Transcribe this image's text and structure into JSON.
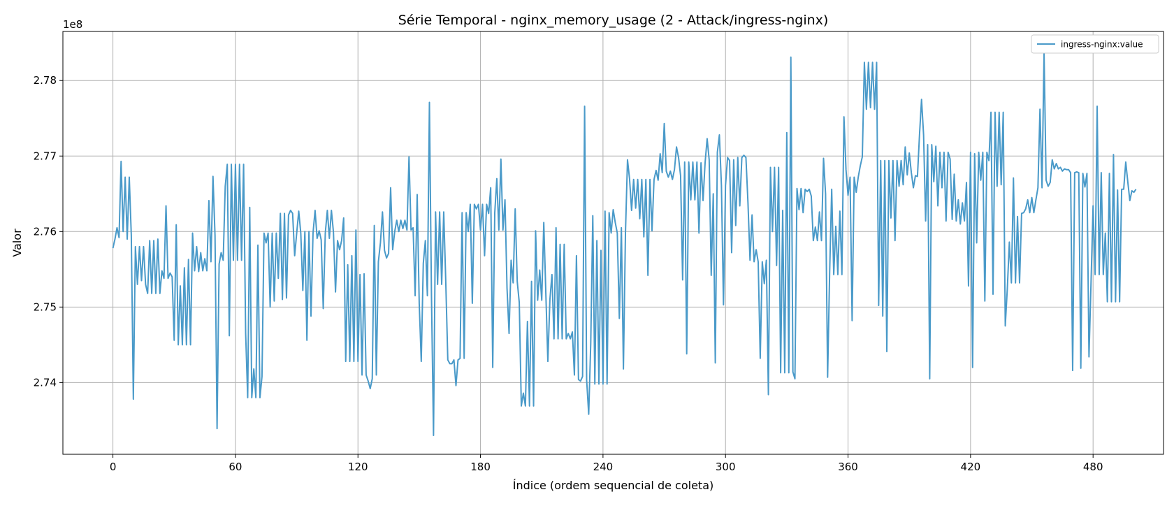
{
  "chart_data": {
    "type": "line",
    "title": "Série Temporal - nginx_memory_usage (2 - Attack/ingress-nginx)",
    "xlabel": "Índice (ordem sequencial de coleta)",
    "ylabel": "Valor",
    "y_offset_text": "1e8",
    "y_multiplier": 100000000,
    "xlim": [
      -24.5,
      514.5
    ],
    "ylim": [
      2.7305,
      2.7865
    ],
    "x_ticks": [
      0,
      60,
      120,
      180,
      240,
      300,
      360,
      420,
      480
    ],
    "x_tick_labels": [
      "0",
      "60",
      "120",
      "180",
      "240",
      "300",
      "360",
      "420",
      "480"
    ],
    "y_ticks": [
      2.74,
      2.75,
      2.76,
      2.77,
      2.78
    ],
    "y_tick_labels": [
      "2.74",
      "2.75",
      "2.76",
      "2.77",
      "2.78"
    ],
    "grid": true,
    "legend_position": "top-right",
    "series": [
      {
        "name": "ingress-nginx:value",
        "color": "#4a9ac9",
        "y": [
          2.7578,
          2.759,
          2.7605,
          2.7592,
          2.7693,
          2.76,
          2.7672,
          2.759,
          2.7672,
          2.7595,
          2.7378,
          2.758,
          2.753,
          2.758,
          2.7535,
          2.758,
          2.753,
          2.7518,
          2.7588,
          2.7518,
          2.7588,
          2.7518,
          2.759,
          2.7518,
          2.7548,
          2.7538,
          2.7634,
          2.7538,
          2.7545,
          2.754,
          2.7456,
          2.7609,
          2.745,
          2.7528,
          2.745,
          2.7552,
          2.745,
          2.7563,
          2.745,
          2.7598,
          2.7548,
          2.758,
          2.7547,
          2.7572,
          2.7548,
          2.7564,
          2.7548,
          2.7641,
          2.756,
          2.7673,
          2.7595,
          2.7339,
          2.7557,
          2.7572,
          2.7562,
          2.766,
          2.7689,
          2.7462,
          2.7689,
          2.7562,
          2.7689,
          2.7562,
          2.7689,
          2.7562,
          2.7689,
          2.7465,
          2.738,
          2.7632,
          2.738,
          2.7418,
          2.738,
          2.7582,
          2.738,
          2.7408,
          2.7598,
          2.7585,
          2.7598,
          2.75,
          2.7598,
          2.7508,
          2.7598,
          2.7538,
          2.7624,
          2.751,
          2.7624,
          2.7512,
          2.7622,
          2.7628,
          2.7624,
          2.7568,
          2.7598,
          2.7627,
          2.7598,
          2.7522,
          2.76,
          2.7456,
          2.76,
          2.7488,
          2.7598,
          2.7628,
          2.7591,
          2.7601,
          2.7589,
          2.7498,
          2.7598,
          2.7628,
          2.7591,
          2.7628,
          2.7599,
          2.752,
          2.7588,
          2.7576,
          2.7588,
          2.7618,
          2.7428,
          2.7556,
          2.7428,
          2.7568,
          2.7428,
          2.7602,
          2.7428,
          2.7543,
          2.741,
          2.7544,
          2.741,
          2.7402,
          2.7392,
          2.7405,
          2.7608,
          2.741,
          2.756,
          2.7585,
          2.7626,
          2.7575,
          2.7565,
          2.7571,
          2.7658,
          2.7576,
          2.76,
          2.7615,
          2.76,
          2.7615,
          2.7604,
          2.7615,
          2.7602,
          2.7699,
          2.7602,
          2.7605,
          2.7515,
          2.7649,
          2.7505,
          2.7428,
          2.7558,
          2.7588,
          2.7515,
          2.7771,
          2.7515,
          2.733,
          2.7626,
          2.753,
          2.7626,
          2.753,
          2.7626,
          2.7534,
          2.743,
          2.7425,
          2.7425,
          2.743,
          2.7396,
          2.743,
          2.7432,
          2.7625,
          2.7432,
          2.7625,
          2.76,
          2.7636,
          2.7505,
          2.7636,
          2.763,
          2.7636,
          2.7602,
          2.7636,
          2.7568,
          2.7636,
          2.7624,
          2.7658,
          2.742,
          2.7625,
          2.767,
          2.7602,
          2.7696,
          2.7602,
          2.7642,
          2.7525,
          2.7465,
          2.7562,
          2.7532,
          2.763,
          2.7534,
          2.7506,
          2.7369,
          2.7386,
          2.7369,
          2.7481,
          2.7369,
          2.7534,
          2.7369,
          2.7601,
          2.7509,
          2.7549,
          2.7509,
          2.7612,
          2.7519,
          2.7428,
          2.751,
          2.7543,
          2.7458,
          2.7605,
          2.7458,
          2.7583,
          2.7458,
          2.7583,
          2.7458,
          2.7465,
          2.7458,
          2.7467,
          2.741,
          2.7568,
          2.7404,
          2.7402,
          2.7408,
          2.7766,
          2.7403,
          2.7358,
          2.7452,
          2.7621,
          2.7398,
          2.7588,
          2.7398,
          2.7575,
          2.7398,
          2.7627,
          2.7398,
          2.7625,
          2.7598,
          2.7629,
          2.7612,
          2.7598,
          2.7485,
          2.7605,
          2.7418,
          2.7598,
          2.7695,
          2.767,
          2.7628,
          2.7669,
          2.7631,
          2.7669,
          2.7617,
          2.7669,
          2.7593,
          2.7669,
          2.7542,
          2.7669,
          2.7601,
          2.7669,
          2.7681,
          2.7668,
          2.7703,
          2.7678,
          2.7743,
          2.768,
          2.7672,
          2.768,
          2.7669,
          2.7682,
          2.7712,
          2.7698,
          2.7674,
          2.7536,
          2.7692,
          2.7438,
          2.7692,
          2.7642,
          2.7692,
          2.7642,
          2.7692,
          2.7598,
          2.7691,
          2.7641,
          2.7691,
          2.7723,
          2.7695,
          2.7542,
          2.765,
          2.7426,
          2.7705,
          2.7728,
          2.7661,
          2.7503,
          2.7661,
          2.7698,
          2.7694,
          2.7572,
          2.7695,
          2.7608,
          2.7698,
          2.7634,
          2.7698,
          2.7701,
          2.7698,
          2.7638,
          2.7562,
          2.7622,
          2.756,
          2.7576,
          2.756,
          2.7432,
          2.756,
          2.7531,
          2.7562,
          2.7384,
          2.7685,
          2.76,
          2.7685,
          2.7555,
          2.7685,
          2.7413,
          2.7628,
          2.7413,
          2.7731,
          2.7413,
          2.7831,
          2.7414,
          2.7405,
          2.7657,
          2.7629,
          2.7657,
          2.7625,
          2.7656,
          2.7653,
          2.7656,
          2.7647,
          2.7588,
          2.7606,
          2.7588,
          2.7626,
          2.7588,
          2.7697,
          2.765,
          2.7407,
          2.7546,
          2.7656,
          2.7543,
          2.7607,
          2.7543,
          2.7627,
          2.7543,
          2.7752,
          2.7682,
          2.7648,
          2.7672,
          2.7482,
          2.7672,
          2.7652,
          2.7672,
          2.7687,
          2.7699,
          2.7824,
          2.7762,
          2.7824,
          2.7764,
          2.7824,
          2.7762,
          2.7824,
          2.7502,
          2.7694,
          2.7488,
          2.7694,
          2.7441,
          2.7694,
          2.7618,
          2.7694,
          2.7588,
          2.7694,
          2.766,
          2.7694,
          2.7662,
          2.7712,
          2.7675,
          2.7704,
          2.7678,
          2.7658,
          2.7674,
          2.7673,
          2.7728,
          2.7775,
          2.7728,
          2.7614,
          2.7715,
          2.7405,
          2.7715,
          2.7666,
          2.7713,
          2.7634,
          2.7705,
          2.7658,
          2.7705,
          2.7614,
          2.7705,
          2.7696,
          2.7616,
          2.7676,
          2.7614,
          2.7642,
          2.761,
          2.7638,
          2.7614,
          2.7665,
          2.7528,
          2.7705,
          2.742,
          2.7703,
          2.7585,
          2.7705,
          2.7668,
          2.7705,
          2.7508,
          2.7705,
          2.7694,
          2.7758,
          2.7517,
          2.7758,
          2.766,
          2.7758,
          2.7662,
          2.7758,
          2.7475,
          2.7524,
          2.7586,
          2.7532,
          2.7671,
          2.7532,
          2.762,
          2.7532,
          2.7624,
          2.7625,
          2.763,
          2.7642,
          2.7625,
          2.7645,
          2.7625,
          2.7642,
          2.7658,
          2.7762,
          2.7658,
          2.7837,
          2.7668,
          2.766,
          2.7665,
          2.7695,
          2.7683,
          2.769,
          2.7683,
          2.7685,
          2.768,
          2.7683,
          2.7682,
          2.7682,
          2.7678,
          2.7416,
          2.7678,
          2.7679,
          2.7678,
          2.7419,
          2.7677,
          2.7659,
          2.7677,
          2.7434,
          2.7532,
          2.7634,
          2.7543,
          2.7766,
          2.7543,
          2.7678,
          2.7543,
          2.7598,
          2.7507,
          2.7677,
          2.7507,
          2.7702,
          2.7507,
          2.7655,
          2.7507,
          2.7656,
          2.7656,
          2.7692,
          2.7666,
          2.7641,
          2.7654,
          2.7652,
          2.7656
        ]
      }
    ]
  }
}
